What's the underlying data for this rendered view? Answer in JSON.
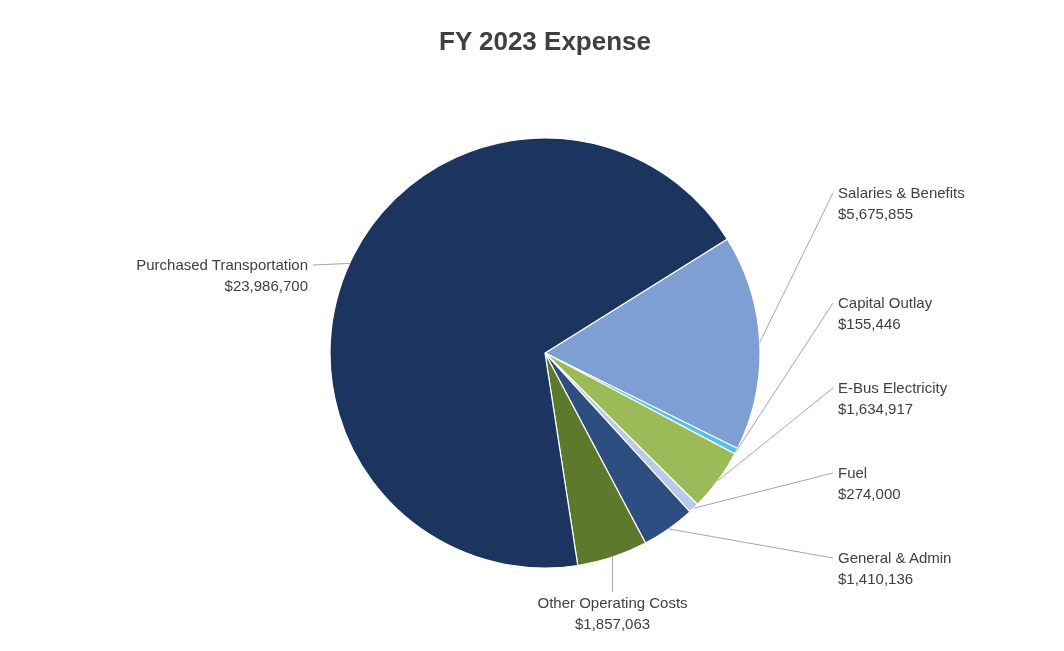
{
  "chart_data": {
    "type": "pie",
    "title": "FY 2023 Expense",
    "categories": [
      "Salaries & Benefits",
      "Capital Outlay",
      "E-Bus Electricity",
      "Fuel",
      "General & Admin",
      "Other Operating Costs",
      "Purchased Transportation"
    ],
    "values": [
      5675855,
      155446,
      1634917,
      274000,
      1410136,
      1857063,
      23986700
    ],
    "value_labels": [
      "$5,675,855",
      "$155,446",
      "$1,634,917",
      "$274,000",
      "$1,410,136",
      "$1,857,063",
      "$23,986,700"
    ],
    "colors": [
      "#7d9fd3",
      "#4fc3e6",
      "#9bbb59",
      "#b7cce8",
      "#2e4d80",
      "#5d7a2c",
      "#1c3560"
    ]
  }
}
